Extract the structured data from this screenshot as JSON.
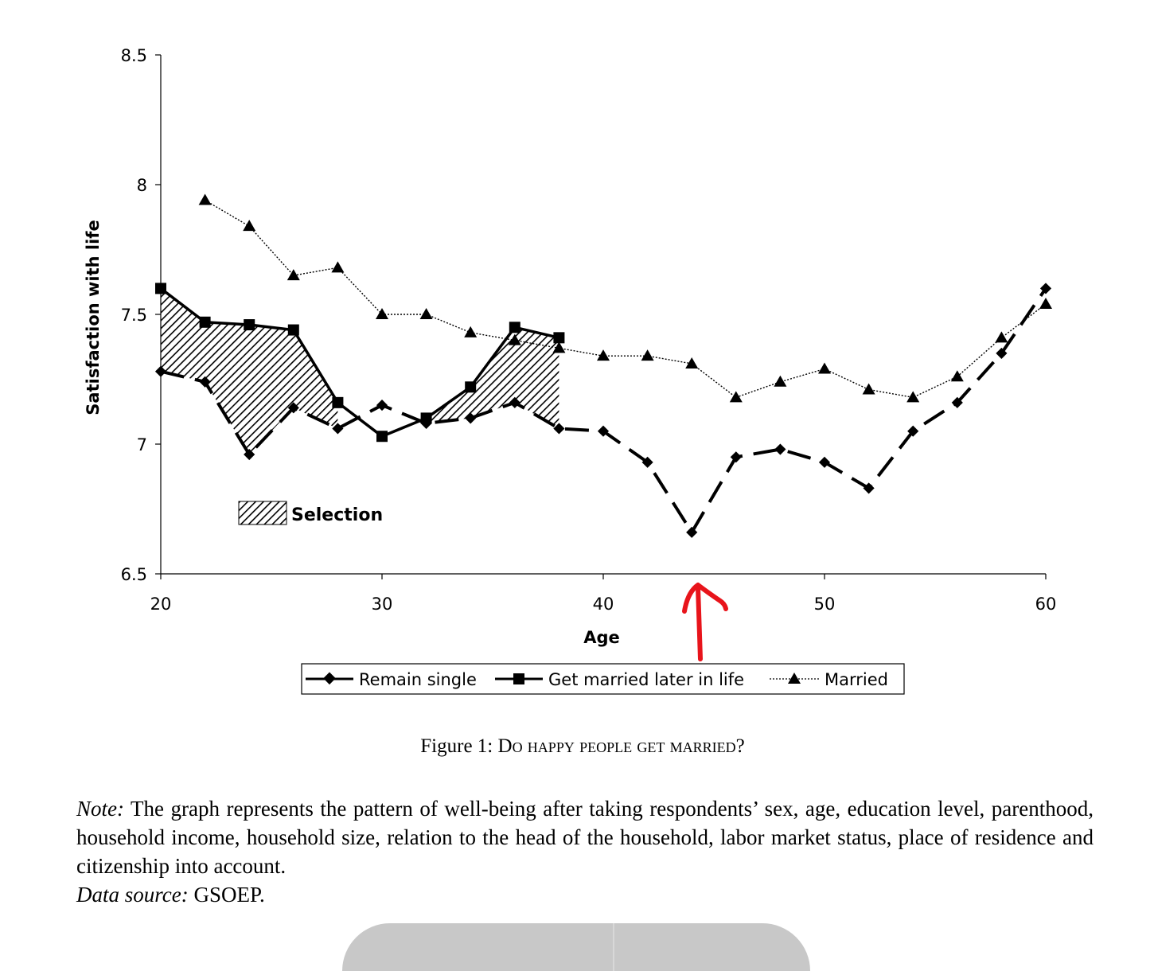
{
  "chart_data": {
    "type": "line",
    "xlabel": "Age",
    "ylabel": "Satisfaction with life",
    "xlim": [
      20,
      60
    ],
    "ylim": [
      6.5,
      8.5
    ],
    "xticks": [
      "20",
      "30",
      "40",
      "50",
      "60"
    ],
    "yticks": [
      "6.5",
      "7",
      "7.5",
      "8",
      "8.5"
    ],
    "grid": false,
    "legend_position": "bottom",
    "series": [
      {
        "name": "Remain single",
        "style": "dashed",
        "marker": "diamond",
        "color": "#000000",
        "x": [
          20,
          22,
          24,
          26,
          28,
          30,
          32,
          34,
          36,
          38,
          40,
          42,
          44,
          46,
          48,
          50,
          52,
          54,
          56,
          58,
          60
        ],
        "y": [
          7.28,
          7.24,
          6.96,
          7.14,
          7.06,
          7.15,
          7.08,
          7.1,
          7.16,
          7.06,
          7.05,
          6.93,
          6.66,
          6.95,
          6.98,
          6.93,
          6.83,
          7.05,
          7.16,
          7.35,
          7.6
        ]
      },
      {
        "name": "Get married later in life",
        "style": "solid",
        "marker": "square",
        "color": "#000000",
        "x": [
          20,
          22,
          24,
          26,
          28,
          30,
          32,
          34,
          36,
          38
        ],
        "y": [
          7.6,
          7.47,
          7.46,
          7.44,
          7.16,
          7.03,
          7.1,
          7.22,
          7.45,
          7.41
        ]
      },
      {
        "name": "Married",
        "style": "dotted",
        "marker": "triangle",
        "color": "#000000",
        "x": [
          22,
          24,
          26,
          28,
          30,
          32,
          34,
          36,
          38,
          40,
          42,
          44,
          46,
          48,
          50,
          52,
          54,
          56,
          58,
          60
        ],
        "y": [
          7.94,
          7.84,
          7.65,
          7.68,
          7.5,
          7.5,
          7.43,
          7.4,
          7.37,
          7.34,
          7.34,
          7.31,
          7.18,
          7.24,
          7.29,
          7.21,
          7.18,
          7.26,
          7.41,
          7.54
        ]
      }
    ],
    "annotations": [
      {
        "label": "Selection",
        "kind": "hatched-region-legend"
      }
    ],
    "overlay": {
      "kind": "red-arrow",
      "color": "#e8141b",
      "points_to_age": 44
    }
  },
  "caption": {
    "prefix": "Figure 1: D",
    "smallcaps": "o happy people get married",
    "suffix": "?"
  },
  "note": {
    "label": "Note:",
    "text": " The graph represents the pattern of well-being after taking respondents’ sex, age, education level, parenthood, household income, household size, relation to the head of the household, labor market status, place of residence and citizenship into account.",
    "source_label": "Data source:",
    "source_text": " GSOEP."
  }
}
